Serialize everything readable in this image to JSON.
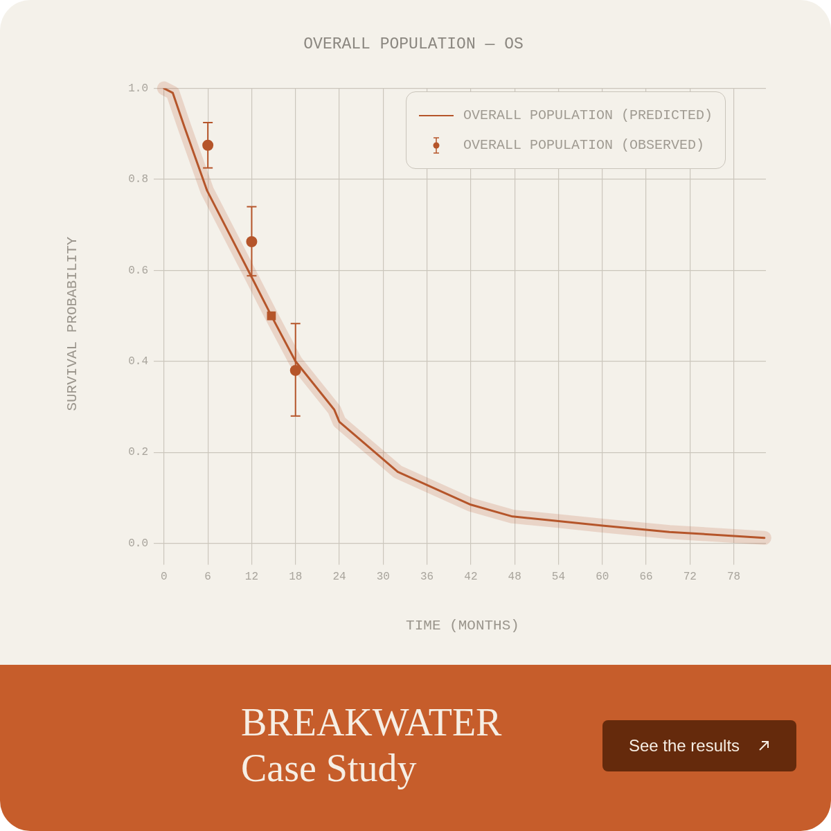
{
  "chart_data": {
    "type": "line",
    "title": "OVERALL POPULATION — OS",
    "xlabel": "TIME (MONTHS)",
    "ylabel": "SURVIVAL PROBABILITY",
    "xlim": [
      -0.65,
      82.4
    ],
    "xticks": [
      0,
      6,
      12,
      18,
      24,
      30,
      36,
      42,
      48,
      54,
      60,
      66,
      72,
      78
    ],
    "ylim": [
      -0.035,
      1
    ],
    "yticks": [
      {
        "value": 0,
        "label": "0.0"
      },
      0.2,
      0.4,
      0.6,
      0.8,
      {
        "value": 1,
        "label": "1.0"
      }
    ],
    "grid": true,
    "legend": "top right",
    "series": [
      {
        "name": "OVERALL POPULATION (PREDICTED)",
        "color": "#b5552a",
        "marker": "none",
        "x": [
          0,
          1.2,
          2.8,
          5.9,
          12,
          14.7,
          18,
          23.3,
          24,
          32,
          42,
          47.7,
          54,
          60,
          69.2,
          82.2
        ],
        "values": [
          1.0,
          0.99,
          0.915,
          0.775,
          0.585,
          0.5,
          0.4,
          0.294,
          0.267,
          0.157,
          0.085,
          0.059,
          0.049,
          0.039,
          0.025,
          0.012
        ]
      },
      {
        "name": "OVERALL POPULATION (OBSERVED)",
        "type": "scatter",
        "color": "#b5552a",
        "marker": "circle",
        "x": [
          6,
          12,
          18
        ],
        "values": [
          0.875,
          0.663,
          0.38
        ],
        "errors": [
          [
            0.825,
            0.925
          ],
          [
            0.588,
            0.74
          ],
          [
            0.28,
            0.483
          ]
        ]
      },
      {
        "type": "scatter",
        "color": "#b5552a",
        "marker": "square",
        "x": [
          14.7
        ],
        "values": [
          0.5
        ]
      }
    ],
    "annotations": [
      "BREAKWATER Case Study",
      "See the results"
    ]
  }
}
